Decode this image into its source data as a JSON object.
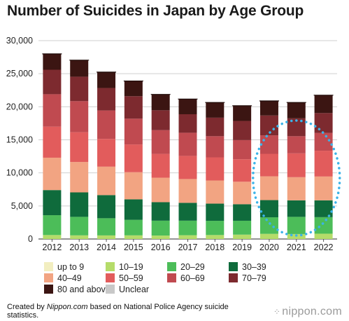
{
  "title": "Number of Suicides in Japan by Age Group",
  "footnote": {
    "prefix": "Created by ",
    "source_name": "Nippon.com",
    "suffix": " based on National Police Agency suicide statistics."
  },
  "brand": {
    "mark": "⁘",
    "name": "nippon.com"
  },
  "chart_data": {
    "type": "bar",
    "stacked": true,
    "title": "Number of Suicides in Japan by Age Group",
    "xlabel": "",
    "ylabel": "",
    "ylim": [
      0,
      30000
    ],
    "yticks": [
      0,
      5000,
      10000,
      15000,
      20000,
      25000,
      30000
    ],
    "ytick_labels": [
      "0",
      "5,000",
      "10,000",
      "15,000",
      "20,000",
      "25,000",
      "30,000"
    ],
    "grid": true,
    "legend_position": "bottom",
    "categories": [
      "2012",
      "2013",
      "2014",
      "2015",
      "2016",
      "2017",
      "2018",
      "2019",
      "2020",
      "2021",
      "2022"
    ],
    "series": [
      {
        "name": "up to 9",
        "color": "#f2eec0",
        "values": [
          0,
          0,
          0,
          0,
          0,
          0,
          0,
          0,
          0,
          0,
          0
        ]
      },
      {
        "name": "10–19",
        "color": "#b5dc6a",
        "values": [
          600,
          550,
          540,
          550,
          520,
          570,
          600,
          660,
          780,
          750,
          800
        ]
      },
      {
        "name": "20–29",
        "color": "#4cbd59",
        "values": [
          3000,
          2800,
          2600,
          2350,
          2250,
          2200,
          2150,
          2100,
          2500,
          2600,
          2500
        ]
      },
      {
        "name": "30–39",
        "color": "#0f6b3c",
        "values": [
          3800,
          3700,
          3500,
          3100,
          2800,
          2700,
          2600,
          2500,
          2600,
          2500,
          2550
        ]
      },
      {
        "name": "40–49",
        "color": "#f2a482",
        "values": [
          4900,
          4600,
          4300,
          4100,
          3700,
          3600,
          3500,
          3400,
          3600,
          3500,
          3600
        ]
      },
      {
        "name": "50–59",
        "color": "#e25c5c",
        "values": [
          4700,
          4500,
          4200,
          4200,
          3600,
          3500,
          3500,
          3400,
          3400,
          3600,
          3900
        ]
      },
      {
        "name": "60–69",
        "color": "#c04a50",
        "values": [
          4900,
          4700,
          4300,
          3900,
          3600,
          3500,
          3200,
          2900,
          2800,
          2600,
          2700
        ]
      },
      {
        "name": "70–79",
        "color": "#7d2a2f",
        "values": [
          3700,
          3700,
          3400,
          3400,
          3000,
          2800,
          2800,
          2900,
          3000,
          2700,
          3000
        ]
      },
      {
        "name": "80 and above",
        "color": "#3b1512",
        "values": [
          2400,
          2500,
          2400,
          2300,
          2400,
          2300,
          2300,
          2300,
          2200,
          2400,
          2700
        ]
      },
      {
        "name": "Unclear",
        "color": "#c8c8c8",
        "values": [
          0,
          0,
          0,
          0,
          0,
          0,
          0,
          0,
          0,
          0,
          0
        ]
      }
    ],
    "annotation": {
      "type": "dotted-circle",
      "color": "#3bb3e8",
      "highlights": [
        "2020",
        "2021",
        "2022"
      ]
    }
  }
}
